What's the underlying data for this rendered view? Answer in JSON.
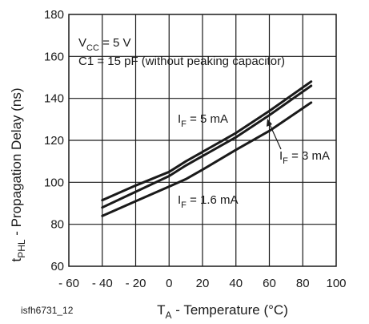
{
  "chart_data": {
    "type": "line",
    "xlim": [
      -60,
      100
    ],
    "ylim": [
      60,
      180
    ],
    "xticks": [
      -60,
      -40,
      -20,
      0,
      20,
      40,
      60,
      80,
      100
    ],
    "yticks": [
      60,
      80,
      100,
      120,
      140,
      160,
      180
    ],
    "xtick_labels": [
      "- 60",
      "- 40",
      "- 20",
      "0",
      "20",
      "40",
      "60",
      "80",
      "100"
    ],
    "ytick_labels": [
      "60",
      "80",
      "100",
      "120",
      "140",
      "160",
      "180"
    ],
    "grid": true,
    "ylabel": {
      "main": "t",
      "sub": "PHL",
      "rest": " - Propagation Delay (ns)"
    },
    "xlabel": {
      "main": "T",
      "sub": "A",
      "rest": " - Temperature (°C)"
    },
    "figure_id": "isfh6731_12",
    "conditions": [
      {
        "main": "V",
        "sub": "CC",
        "rest": " = 5 V"
      },
      {
        "main": "C1 = 15 pF (without peaking capacitor)",
        "sub": "",
        "rest": ""
      }
    ],
    "series": [
      {
        "name": "I_F = 5 mA",
        "label_main": "I",
        "label_sub": "F",
        "label_rest": " = 5 mA",
        "x": [
          -40,
          -20,
          0,
          10,
          20,
          40,
          60,
          85
        ],
        "y": [
          91.5,
          98.5,
          105,
          110,
          114.5,
          123.5,
          134,
          148
        ]
      },
      {
        "name": "I_F = 3 mA",
        "label_main": "I",
        "label_sub": "F",
        "label_rest": " = 3 mA",
        "x": [
          -40,
          -20,
          0,
          10,
          20,
          40,
          60,
          85
        ],
        "y": [
          88,
          95.5,
          103,
          108,
          112.5,
          121.5,
          132,
          146
        ]
      },
      {
        "name": "I_F = 1.6 mA",
        "label_main": "I",
        "label_sub": "F",
        "label_rest": " = 1.6 mA",
        "x": [
          -40,
          -20,
          0,
          10,
          20,
          40,
          60,
          85
        ],
        "y": [
          84,
          91,
          98,
          101.5,
          106,
          115.5,
          124.5,
          138
        ]
      }
    ]
  }
}
